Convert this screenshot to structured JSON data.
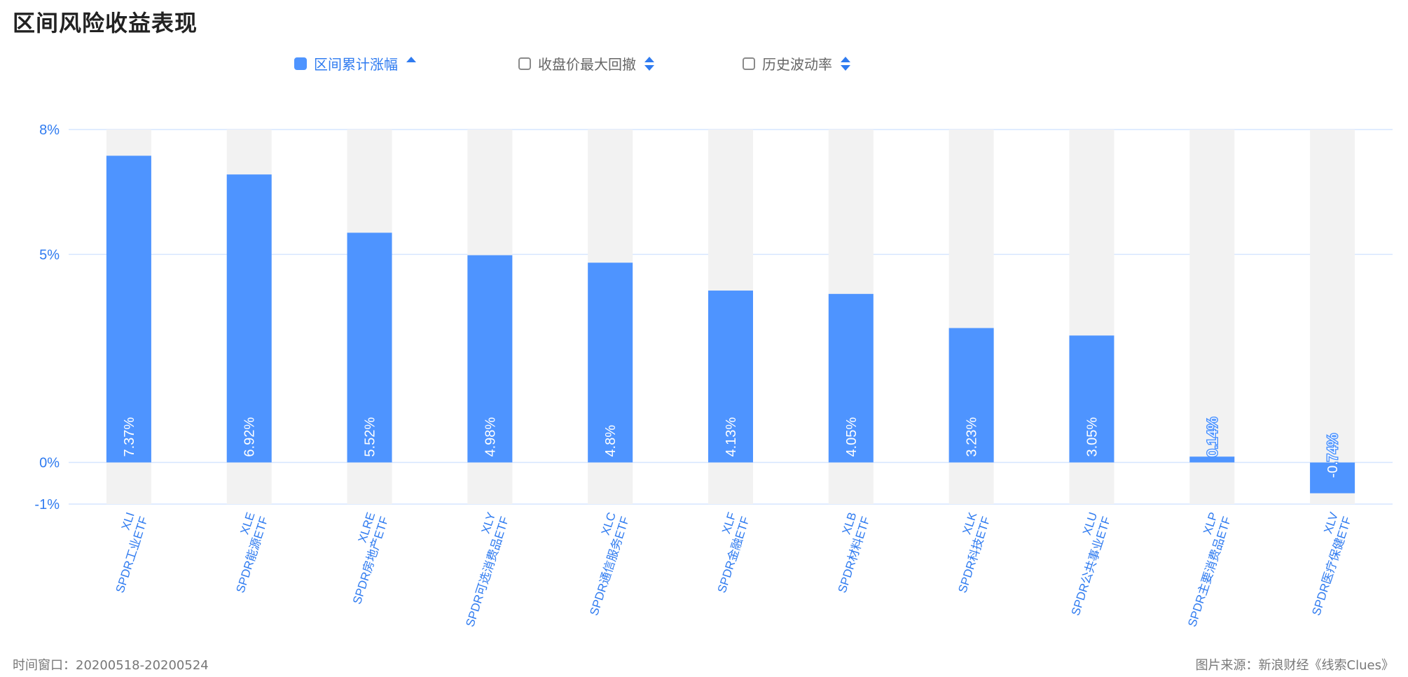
{
  "page_title": "区间风险收益表现",
  "legend": [
    {
      "label": "区间累计涨幅",
      "checked": true
    },
    {
      "label": "收盘价最大回撤",
      "checked": false
    },
    {
      "label": "历史波动率",
      "checked": false
    }
  ],
  "footer": {
    "window": "时间窗口：20200518-20200524",
    "source": "图片来源：新浪财经《线索Clues》"
  },
  "colors": {
    "bar": "#4e94ff",
    "track": "#f2f2f2",
    "axis_text": "#2f7bf0",
    "grid": "#d6e6ff"
  },
  "chart_data": {
    "type": "bar",
    "title": "区间风险收益表现",
    "ylim": [
      -1,
      8
    ],
    "yticks": [
      8,
      5,
      0,
      -1
    ],
    "ytick_labels": [
      "8%",
      "5%",
      "0%",
      "-1%"
    ],
    "categories": [
      {
        "code": "XLI",
        "name": "SPDR工业ETF"
      },
      {
        "code": "XLE",
        "name": "SPDR能源ETF"
      },
      {
        "code": "XLRE",
        "name": "SPDR房地产ETF"
      },
      {
        "code": "XLY",
        "name": "SPDR可选消费品ETF"
      },
      {
        "code": "XLC",
        "name": "SPDR通信服务ETF"
      },
      {
        "code": "XLF",
        "name": "SPDR金融ETF"
      },
      {
        "code": "XLB",
        "name": "SPDR材料ETF"
      },
      {
        "code": "XLK",
        "name": "SPDR科技ETF"
      },
      {
        "code": "XLU",
        "name": "SPDR公共事业ETF"
      },
      {
        "code": "XLP",
        "name": "SPDR主要消费品ETF"
      },
      {
        "code": "XLV",
        "name": "SPDR医疗保健ETF"
      }
    ],
    "values": [
      7.37,
      6.92,
      5.52,
      4.98,
      4.8,
      4.13,
      4.05,
      3.23,
      3.05,
      0.14,
      -0.74
    ],
    "value_labels": [
      "7.37%",
      "6.92%",
      "5.52%",
      "4.98%",
      "4.8%",
      "4.13%",
      "4.05%",
      "3.23%",
      "3.05%",
      "0.14%",
      "-0.74%"
    ],
    "grid": true,
    "legend_position": "top"
  }
}
